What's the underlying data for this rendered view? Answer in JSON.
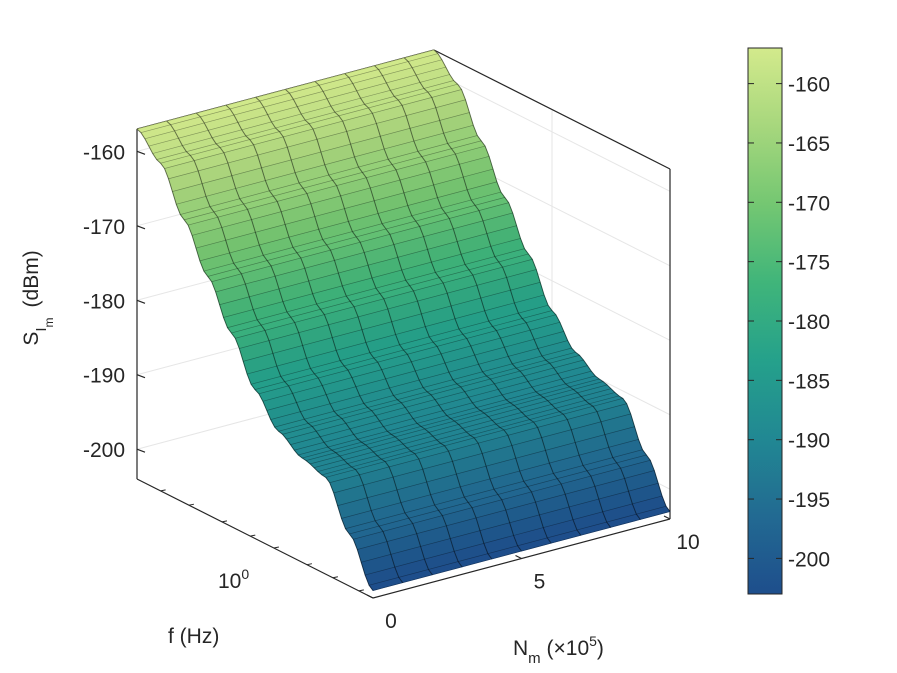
{
  "chart_data": {
    "type": "surface",
    "view": "3d-perspective",
    "colormap": "viridis-like (dark blue to light yellow-green)",
    "grid": true,
    "x_axis": {
      "label_base": "N",
      "label_sub": "m",
      "label_suffix": " (×10",
      "label_sup": "5",
      "label_end": ")",
      "ticks": [
        "0",
        "5",
        "10"
      ],
      "range": [
        0,
        10
      ]
    },
    "y_axis": {
      "label": "f (Hz)",
      "scale": "log",
      "tick_base": "10",
      "tick_sup": "0"
    },
    "z_axis": {
      "label_base": "S",
      "label_sub": "I",
      "label_subsub": "m",
      "label_unit": "(dBm)",
      "ticks": [
        "-160",
        "-170",
        "-180",
        "-190",
        "-200"
      ],
      "range": [
        -204,
        -157
      ]
    },
    "colorbar": {
      "location": "right",
      "ticks": [
        "-160",
        "-165",
        "-170",
        "-175",
        "-180",
        "-185",
        "-190",
        "-195",
        "-200"
      ],
      "range": [
        -203,
        -157
      ],
      "colors": [
        "#1e4e8c",
        "#226a92",
        "#218893",
        "#25a18b",
        "#40b57a",
        "#74c772",
        "#a7d77d",
        "#d3ea8c"
      ]
    },
    "surface_profile": {
      "description_note": "Level across frequency (low f to high f) at every N_m; value is nearly constant across N_m",
      "f_fraction": [
        0.0,
        0.1,
        0.2,
        0.3,
        0.4,
        0.5,
        0.6,
        0.7,
        0.8,
        0.9,
        1.0
      ],
      "level_dbm": [
        -157,
        -160,
        -166,
        -172,
        -178,
        -184,
        -188,
        -190,
        -191,
        -197,
        -203
      ]
    }
  }
}
